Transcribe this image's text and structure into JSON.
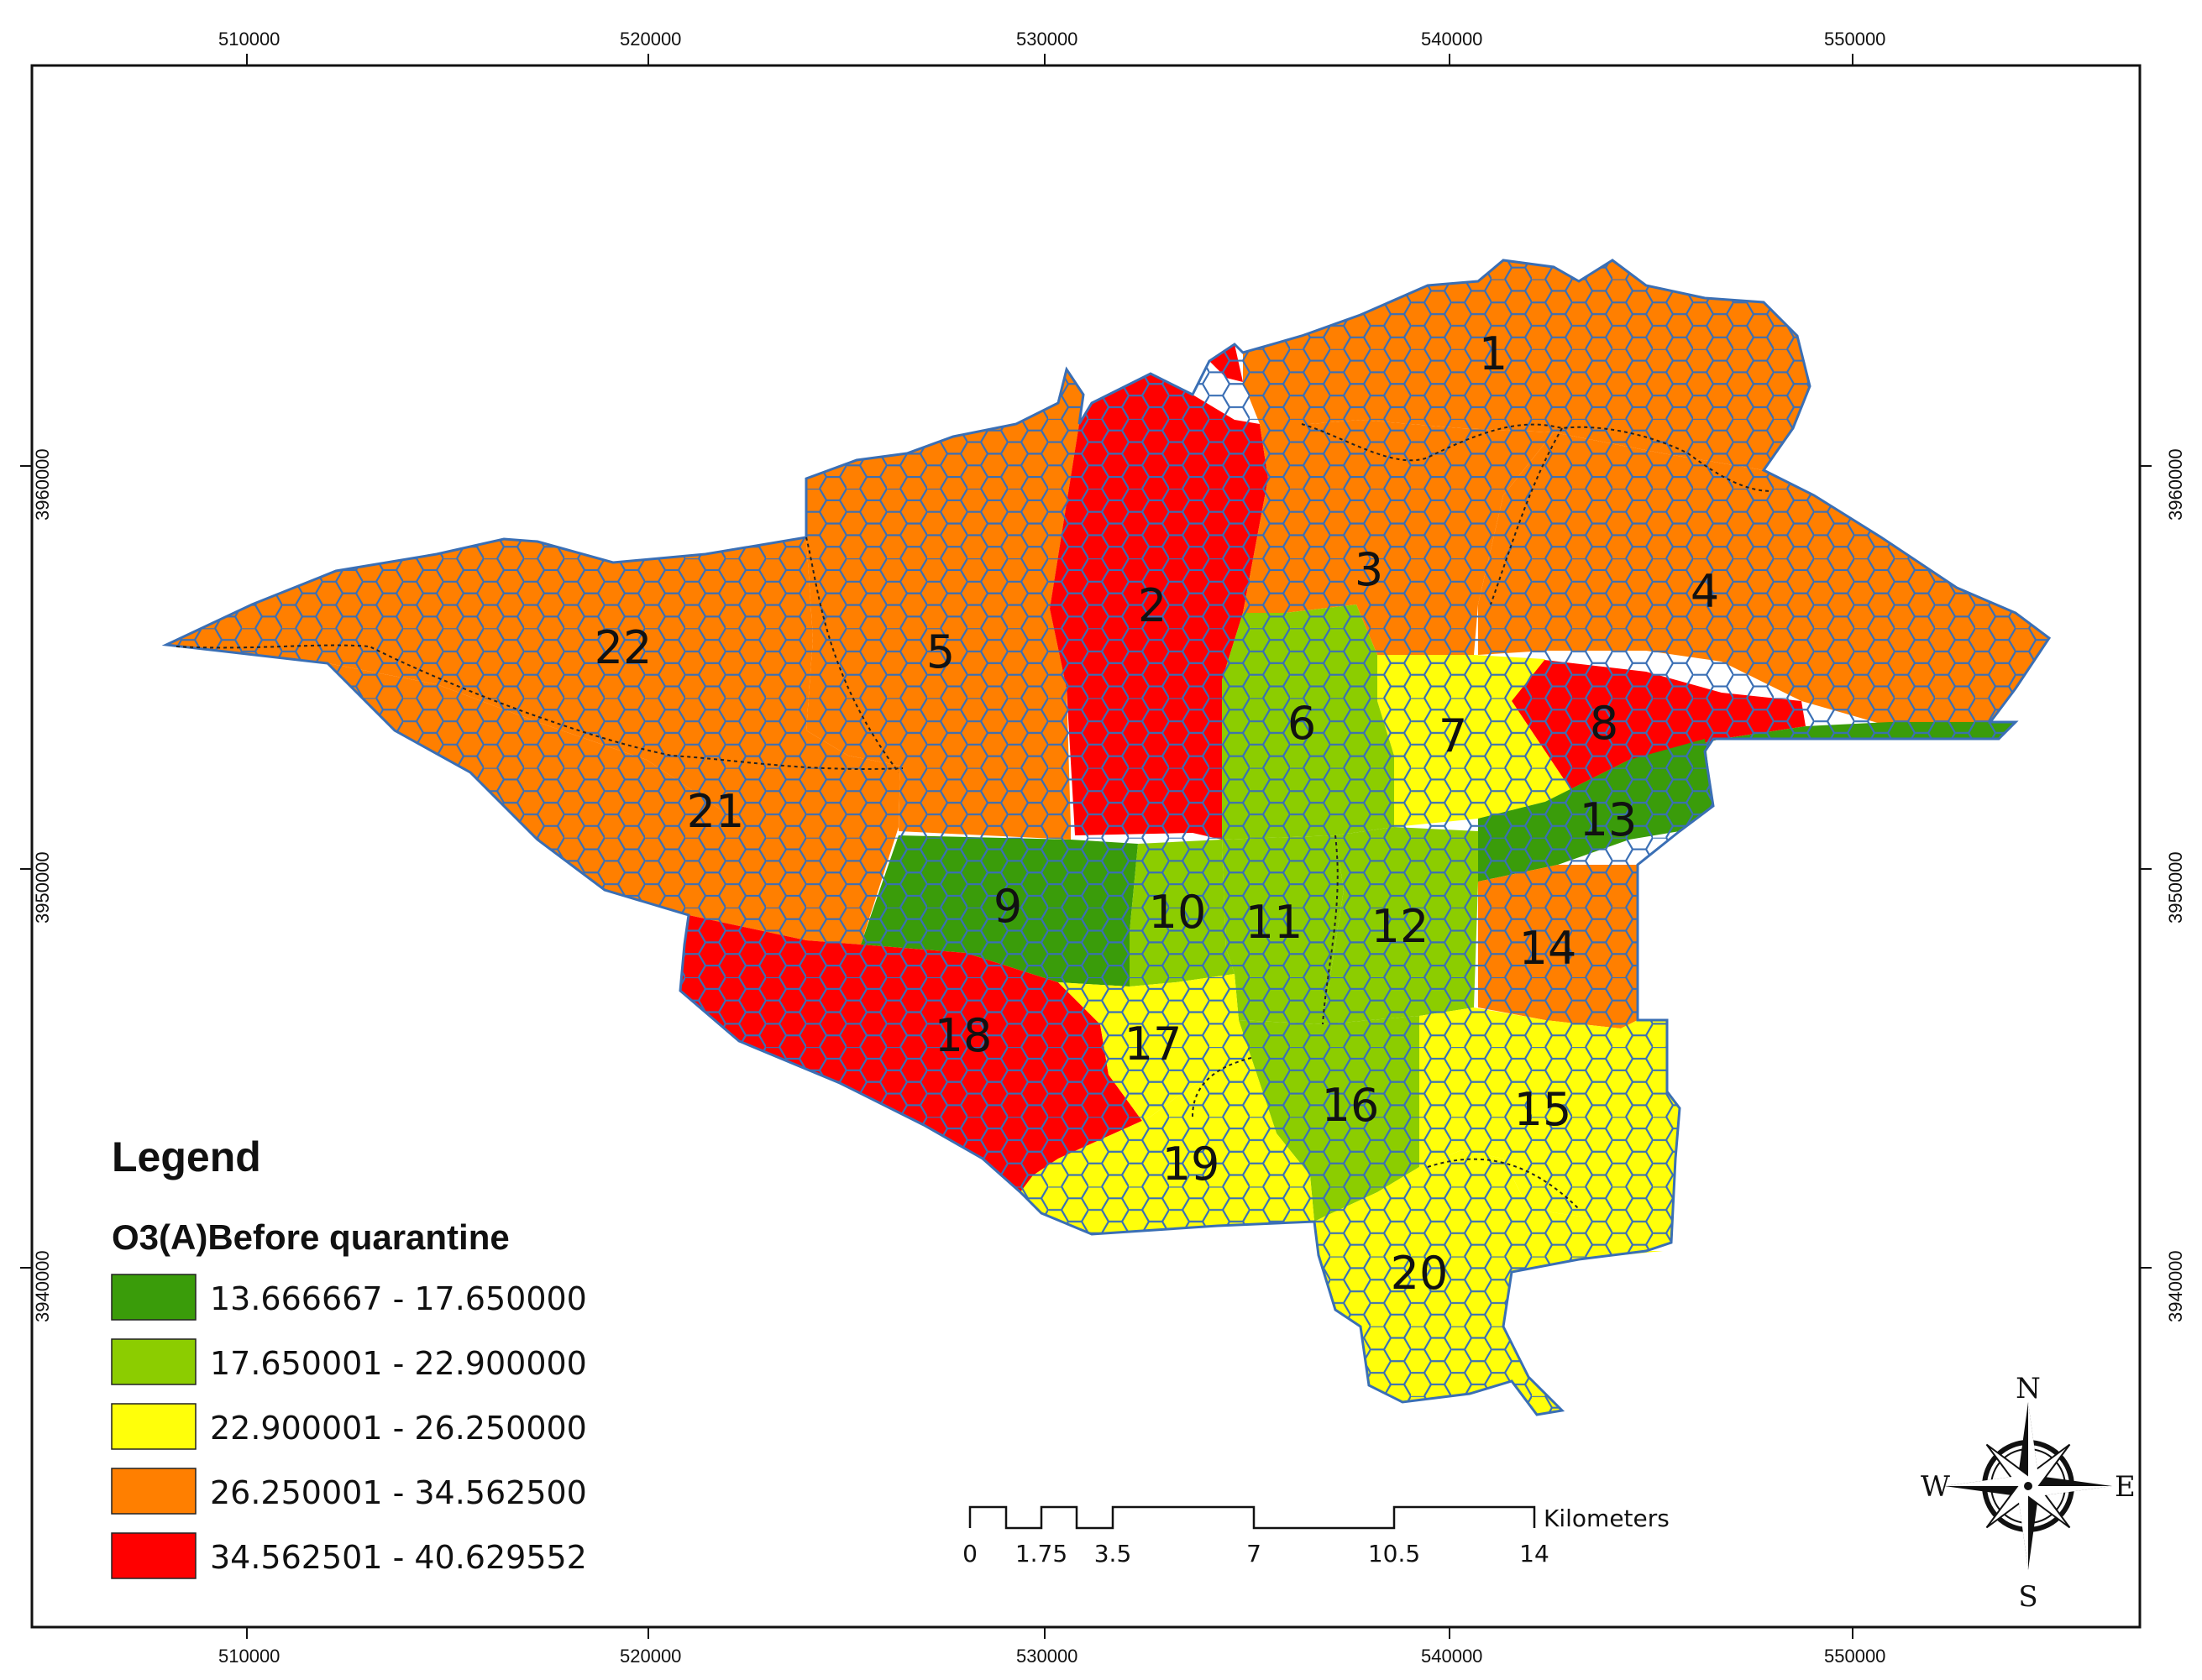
{
  "map": {
    "legend_title": "Legend",
    "legend_subtitle": "O3(A)Before quarantine",
    "classes": [
      {
        "range": "13.666667 - 17.650000",
        "color": "#3a9c0a"
      },
      {
        "range": "17.650001 - 22.900000",
        "color": "#8ccd00"
      },
      {
        "range": "22.900001 - 26.250000",
        "color": "#ffff0a"
      },
      {
        "range": "26.250001 - 34.562500",
        "color": "#ff7f00"
      },
      {
        "range": "34.562501 - 40.629552",
        "color": "#ff0000"
      }
    ],
    "x_ticks": [
      "510000",
      "520000",
      "530000",
      "540000",
      "550000"
    ],
    "y_ticks": [
      "3960000",
      "3950000",
      "3940000"
    ],
    "districts": [
      {
        "id": "1",
        "class": 3
      },
      {
        "id": "2",
        "class": 4
      },
      {
        "id": "3",
        "class": 3
      },
      {
        "id": "4",
        "class": 3
      },
      {
        "id": "5",
        "class": 3
      },
      {
        "id": "6",
        "class": 1
      },
      {
        "id": "7",
        "class": 2
      },
      {
        "id": "8",
        "class": 4
      },
      {
        "id": "9",
        "class": 0
      },
      {
        "id": "10",
        "class": 1
      },
      {
        "id": "11",
        "class": 1
      },
      {
        "id": "12",
        "class": 1
      },
      {
        "id": "13",
        "class": 0
      },
      {
        "id": "14",
        "class": 3
      },
      {
        "id": "15",
        "class": 2
      },
      {
        "id": "16",
        "class": 1
      },
      {
        "id": "17",
        "class": 2
      },
      {
        "id": "18",
        "class": 4
      },
      {
        "id": "19",
        "class": 2
      },
      {
        "id": "20",
        "class": 2
      },
      {
        "id": "21",
        "class": 3
      },
      {
        "id": "22",
        "class": 3
      }
    ],
    "scale_bar": {
      "unit": "Kilometers",
      "labels": [
        "0",
        "1.75",
        "3.5",
        "7",
        "10.5",
        "14"
      ]
    },
    "compass": {
      "n": "N",
      "s": "S",
      "e": "E",
      "w": "W"
    },
    "hex_stroke": "#3a6fb5"
  }
}
